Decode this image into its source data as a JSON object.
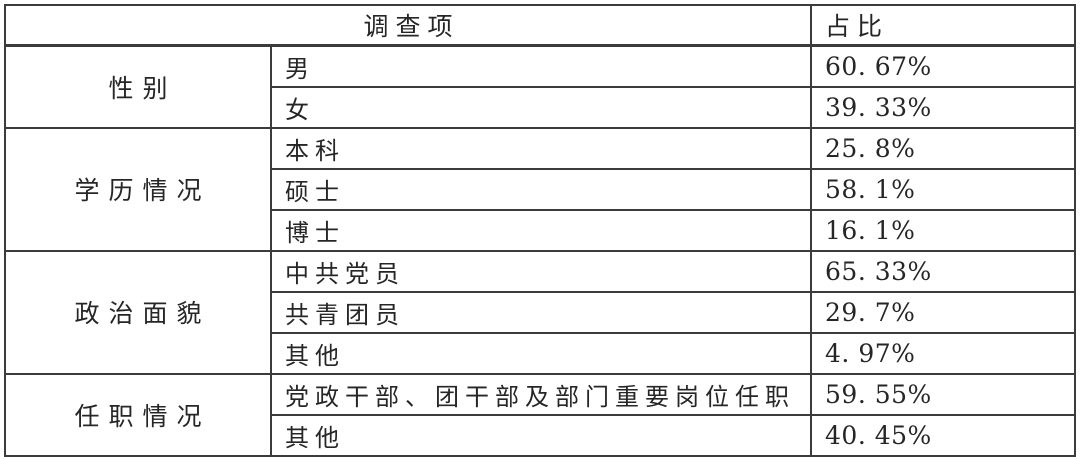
{
  "table": {
    "header": {
      "survey_item": "调查项",
      "proportion": "占比"
    },
    "groups": [
      {
        "category": "性别",
        "rows": [
          {
            "item": "男",
            "value": "60. 67%"
          },
          {
            "item": "女",
            "value": "39. 33%"
          }
        ]
      },
      {
        "category": "学历情况",
        "rows": [
          {
            "item": "本科",
            "value": "25. 8%"
          },
          {
            "item": "硕士",
            "value": "58. 1%"
          },
          {
            "item": "博士",
            "value": "16. 1%"
          }
        ]
      },
      {
        "category": "政治面貌",
        "rows": [
          {
            "item": "中共党员",
            "value": "65. 33%"
          },
          {
            "item": "共青团员",
            "value": "29. 7%"
          },
          {
            "item": "其他",
            "value": "4. 97%"
          }
        ]
      },
      {
        "category": "任职情况",
        "rows": [
          {
            "item": "党政干部、团干部及部门重要岗位任职",
            "value": "59. 55%"
          },
          {
            "item": "其他",
            "value": "40. 45%"
          }
        ]
      }
    ]
  },
  "colors": {
    "border": "#3b3b3b",
    "text": "#262626",
    "background": "#ffffff"
  }
}
